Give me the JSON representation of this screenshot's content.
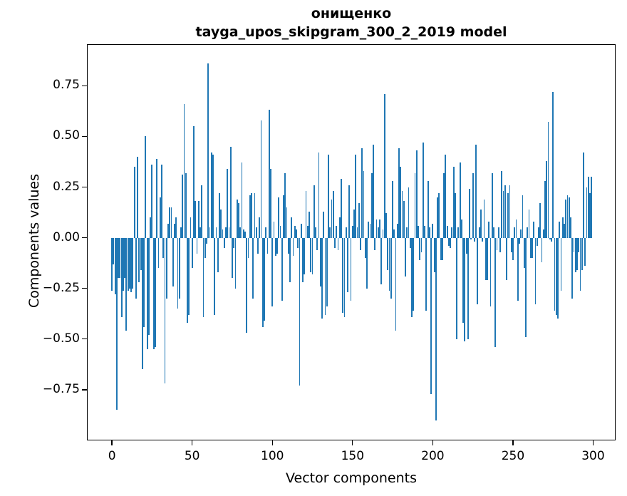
{
  "title": {
    "line1": "онищенко",
    "line2": "tayga_upos_skipgram_300_2_2019 model"
  },
  "axes": {
    "xlabel": "Vector components",
    "ylabel": "Components values",
    "x_tick_labels": [
      "0",
      "50",
      "100",
      "150",
      "200",
      "250",
      "300"
    ],
    "y_tick_labels": [
      "0.75",
      "0.50",
      "0.25",
      "0.00",
      "−0.25",
      "−0.50",
      "−0.75"
    ]
  },
  "colors": {
    "bar": "#1f77b4",
    "text": "#000000",
    "spine": "#000000",
    "background": "#ffffff"
  },
  "chart_data": {
    "type": "bar",
    "title": "онищенко\ntayga_upos_skipgram_300_2_2019 model",
    "xlabel": "Vector components",
    "ylabel": "Components values",
    "x_start": 0,
    "n_components": 300,
    "xlim": [
      -15.6,
      314.0
    ],
    "ylim": [
      -1.0,
      0.955
    ],
    "x_ticks": [
      0,
      50,
      100,
      150,
      200,
      250,
      300
    ],
    "y_ticks": [
      0.75,
      0.5,
      0.25,
      0,
      -0.25,
      -0.5,
      -0.75
    ],
    "grid": false,
    "legend": null,
    "bar_width": 0.8,
    "values": [
      -0.26,
      -0.13,
      -0.28,
      -0.85,
      -0.2,
      -0.2,
      -0.39,
      -0.26,
      -0.2,
      -0.46,
      -0.26,
      -0.25,
      -0.27,
      -0.25,
      0.35,
      -0.3,
      0.4,
      -0.22,
      -0.16,
      -0.65,
      -0.44,
      0.5,
      -0.55,
      -0.48,
      0.1,
      0.36,
      -0.55,
      -0.54,
      0.39,
      -0.15,
      0.2,
      0.36,
      -0.1,
      -0.72,
      -0.3,
      0.07,
      0.15,
      0.15,
      -0.24,
      0.07,
      0.1,
      -0.35,
      -0.3,
      0.05,
      0.31,
      0.66,
      0.32,
      -0.42,
      -0.38,
      0.1,
      -0.15,
      0.55,
      0.18,
      -0.08,
      0.18,
      0.05,
      0.26,
      -0.39,
      -0.1,
      -0.03,
      0.86,
      0.05,
      0.42,
      0.41,
      -0.38,
      0.05,
      -0.17,
      0.22,
      0.14,
      0.04,
      -0.05,
      0.05,
      0.34,
      0.05,
      0.45,
      -0.2,
      -0.05,
      -0.25,
      0.19,
      0.17,
      0.05,
      0.37,
      0.04,
      0.03,
      -0.47,
      -0.1,
      0.21,
      0.22,
      -0.3,
      0.22,
      0.05,
      -0.08,
      0.1,
      0.58,
      -0.44,
      -0.41,
      0.05,
      -0.08,
      0.63,
      0.34,
      -0.34,
      0.08,
      -0.09,
      -0.08,
      0.2,
      0.06,
      -0.31,
      0.21,
      0.32,
      0.15,
      -0.08,
      -0.22,
      0.1,
      -0.09,
      0.06,
      0.04,
      -0.05,
      -0.73,
      0.07,
      -0.22,
      -0.18,
      0.23,
      0.06,
      0.13,
      -0.17,
      -0.18,
      0.26,
      0.05,
      -0.06,
      0.42,
      -0.24,
      -0.4,
      0.13,
      -0.38,
      -0.34,
      0.41,
      0.05,
      0.19,
      0.23,
      -0.05,
      0.06,
      -0.06,
      0.1,
      0.29,
      -0.37,
      -0.39,
      0.05,
      -0.27,
      0.26,
      -0.31,
      0.06,
      0.14,
      0.41,
      0.05,
      0.17,
      -0.06,
      0.44,
      0.33,
      -0.1,
      -0.25,
      0.08,
      0.07,
      0.32,
      0.46,
      -0.06,
      0.09,
      0.05,
      0.09,
      -0.23,
      0.04,
      0.71,
      0.12,
      -0.16,
      -0.26,
      -0.3,
      0.28,
      0.04,
      -0.46,
      0.07,
      0.44,
      0.35,
      0.23,
      0.18,
      -0.19,
      0.05,
      0.25,
      -0.05,
      -0.39,
      -0.36,
      0.32,
      0.43,
      0.06,
      -0.11,
      -0.07,
      0.47,
      0.06,
      -0.36,
      0.28,
      0.05,
      -0.77,
      0.07,
      -0.17,
      -0.9,
      0.2,
      0.22,
      -0.11,
      -0.11,
      0.32,
      0.41,
      0.06,
      -0.04,
      -0.05,
      0.05,
      0.35,
      0.22,
      -0.5,
      0.05,
      0.37,
      0.09,
      -0.42,
      -0.51,
      -0.08,
      -0.5,
      0.24,
      -0.01,
      0.32,
      -0.02,
      0.46,
      -0.33,
      0.05,
      0.14,
      -0.02,
      0.19,
      -0.21,
      -0.21,
      0.08,
      -0.34,
      0.32,
      0.05,
      -0.54,
      -0.06,
      0.05,
      -0.07,
      0.33,
      0.23,
      0.26,
      -0.21,
      0.22,
      0.26,
      -0.07,
      -0.11,
      0.05,
      0.09,
      -0.31,
      -0.03,
      0.04,
      0.21,
      -0.15,
      -0.49,
      0.05,
      0.14,
      -0.1,
      -0.1,
      0.08,
      -0.33,
      -0.04,
      0.05,
      0.17,
      -0.12,
      0.04,
      0.28,
      0.38,
      0.57,
      -0.01,
      -0.02,
      0.72,
      -0.36,
      -0.38,
      -0.4,
      0.08,
      -0.26,
      0.1,
      0.07,
      0.19,
      0.21,
      0.2,
      0.1,
      -0.3,
      -0.07,
      -0.17,
      -0.16,
      -0.07,
      -0.26,
      -0.16,
      0.42,
      -0.14,
      0.25,
      0.3,
      0.22,
      0.3
    ]
  }
}
